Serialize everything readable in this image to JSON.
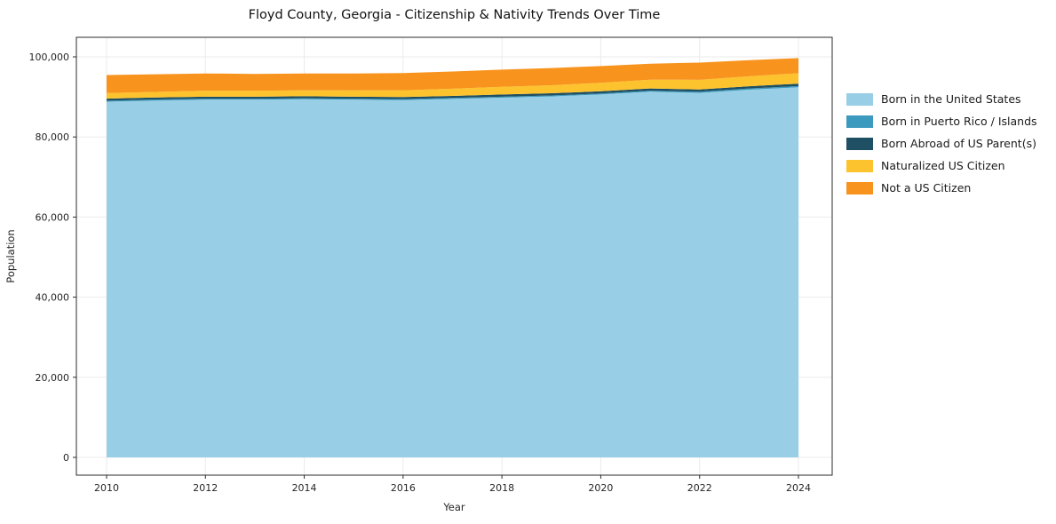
{
  "chart_data": {
    "type": "area",
    "stacked": true,
    "title": "Floyd County, Georgia - Citizenship & Nativity Trends Over Time",
    "xlabel": "Year",
    "ylabel": "Population",
    "grid": true,
    "legend_position": "right-outside",
    "x": [
      2010,
      2011,
      2012,
      2013,
      2014,
      2015,
      2016,
      2017,
      2018,
      2019,
      2020,
      2021,
      2022,
      2023,
      2024
    ],
    "x_ticks": [
      2010,
      2012,
      2014,
      2016,
      2018,
      2020,
      2022,
      2024
    ],
    "x_tick_labels": [
      "2010",
      "2012",
      "2014",
      "2016",
      "2018",
      "2020",
      "2022",
      "2024"
    ],
    "y_ticks": [
      0,
      20000,
      40000,
      60000,
      80000,
      100000
    ],
    "y_tick_labels": [
      "0",
      "20,000",
      "40,000",
      "60,000",
      "80,000",
      "100,000"
    ],
    "ylim": [
      0,
      104800
    ],
    "series": [
      {
        "name": "Born in the United States",
        "color": "#99cfe6",
        "values": [
          88800,
          89100,
          89300,
          89300,
          89400,
          89300,
          89200,
          89500,
          89800,
          90100,
          90600,
          91300,
          91000,
          91800,
          92400
        ]
      },
      {
        "name": "Born in Puerto Rico / Islands",
        "color": "#3d9abf",
        "values": [
          250,
          250,
          250,
          250,
          250,
          250,
          250,
          250,
          250,
          250,
          250,
          250,
          300,
          300,
          300
        ]
      },
      {
        "name": "Born Abroad of US Parent(s)",
        "color": "#1f4f62",
        "values": [
          500,
          500,
          500,
          500,
          500,
          500,
          500,
          500,
          550,
          550,
          550,
          550,
          550,
          550,
          600
        ]
      },
      {
        "name": "Naturalized US Citizen",
        "color": "#fdc32f",
        "values": [
          1400,
          1400,
          1500,
          1500,
          1500,
          1600,
          1700,
          1800,
          1900,
          2000,
          2100,
          2200,
          2400,
          2500,
          2600
        ]
      },
      {
        "name": "Not a US Citizen",
        "color": "#f8941d",
        "values": [
          4500,
          4400,
          4300,
          4200,
          4200,
          4200,
          4300,
          4300,
          4300,
          4300,
          4200,
          4000,
          4300,
          4000,
          3800
        ]
      }
    ],
    "colors": {
      "grid": "#ebebeb",
      "spine": "#2b2b2b",
      "tick_label": "#262626",
      "title": "#111111",
      "background": "#ffffff"
    }
  }
}
